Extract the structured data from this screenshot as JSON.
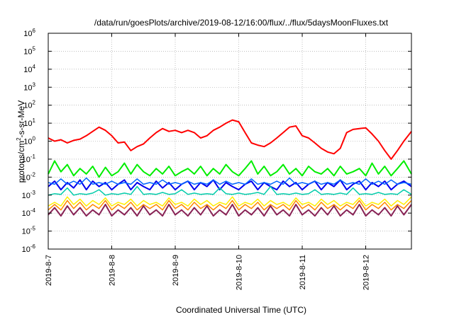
{
  "chart_data": {
    "type": "line",
    "title": "/data/run/goesPlots/archive/2019-08-12/16:00/flux/../flux/5daysMoonFluxes.txt",
    "xlabel": "Coordinated Universal Time (UTC)",
    "ylabel": {
      "base": "protons/cm",
      "sup": "2",
      "rest": "-s-sr-MeV"
    },
    "yscale": "log",
    "ylim": [
      1e-06,
      1000000.0
    ],
    "xlim": [
      0,
      5.72
    ],
    "grid": true,
    "legend": "none",
    "x_ticks": [
      {
        "x": 0,
        "label": "2019-8-7"
      },
      {
        "x": 1,
        "label": "2019-8-8"
      },
      {
        "x": 2,
        "label": "2019-8-9"
      },
      {
        "x": 3,
        "label": "2019-8-10"
      },
      {
        "x": 4,
        "label": "2019-8-11"
      },
      {
        "x": 5,
        "label": "2019-8-12"
      }
    ],
    "y_ticks": [
      {
        "exp": -6,
        "label": "10",
        "sup": "-6"
      },
      {
        "exp": -5,
        "label": "10",
        "sup": "-5"
      },
      {
        "exp": -4,
        "label": "10",
        "sup": "-4"
      },
      {
        "exp": -3,
        "label": "10",
        "sup": "-3"
      },
      {
        "exp": -2,
        "label": "10",
        "sup": "-2"
      },
      {
        "exp": -1,
        "label": "10",
        "sup": "-1"
      },
      {
        "exp": 0,
        "label": "10",
        "sup": "0"
      },
      {
        "exp": 1,
        "label": "10",
        "sup": "1"
      },
      {
        "exp": 2,
        "label": "10",
        "sup": "2"
      },
      {
        "exp": 3,
        "label": "10",
        "sup": "3"
      },
      {
        "exp": 4,
        "label": "10",
        "sup": "4"
      },
      {
        "exp": 5,
        "label": "10",
        "sup": "5"
      },
      {
        "exp": 6,
        "label": "10",
        "sup": "6"
      }
    ],
    "series": [
      {
        "color": "#ff0000",
        "width": 2,
        "x": [
          0,
          0.1,
          0.2,
          0.3,
          0.4,
          0.5,
          0.6,
          0.7,
          0.8,
          0.9,
          1.0,
          1.1,
          1.2,
          1.3,
          1.4,
          1.5,
          1.6,
          1.7,
          1.8,
          1.9,
          2.0,
          2.1,
          2.2,
          2.3,
          2.4,
          2.5,
          2.6,
          2.7,
          2.8,
          2.9,
          3.0,
          3.1,
          3.2,
          3.3,
          3.4,
          3.5,
          3.6,
          3.7,
          3.8,
          3.9,
          4.0,
          4.1,
          4.2,
          4.3,
          4.4,
          4.5,
          4.6,
          4.7,
          4.8,
          4.9,
          5.0,
          5.1,
          5.2,
          5.3,
          5.4,
          5.5,
          5.6,
          5.72
        ],
        "y": [
          1.5,
          1.0,
          1.2,
          0.8,
          1.1,
          1.3,
          2.0,
          3.5,
          6.0,
          4.0,
          2.0,
          0.8,
          0.9,
          0.3,
          0.5,
          0.7,
          1.5,
          3.0,
          5.0,
          3.5,
          4.0,
          3.0,
          4.0,
          3.0,
          1.5,
          2.0,
          4.0,
          6.0,
          10,
          15,
          12,
          3.0,
          0.8,
          0.6,
          0.5,
          0.8,
          1.5,
          3.0,
          6.0,
          7.0,
          2.0,
          1.5,
          0.8,
          0.4,
          0.25,
          0.2,
          0.4,
          3.0,
          4.5,
          5.0,
          5.5,
          2.5,
          1.0,
          0.3,
          0.1,
          0.3,
          1.0,
          3.5
        ]
      },
      {
        "color": "#00ee00",
        "width": 2,
        "x": [
          0,
          0.1,
          0.2,
          0.3,
          0.4,
          0.5,
          0.6,
          0.7,
          0.8,
          0.9,
          1.0,
          1.1,
          1.2,
          1.3,
          1.4,
          1.5,
          1.6,
          1.7,
          1.8,
          1.9,
          2.0,
          2.1,
          2.2,
          2.3,
          2.4,
          2.5,
          2.6,
          2.7,
          2.8,
          2.9,
          3.0,
          3.1,
          3.2,
          3.3,
          3.4,
          3.5,
          3.6,
          3.7,
          3.8,
          3.9,
          4.0,
          4.1,
          4.2,
          4.3,
          4.4,
          4.5,
          4.6,
          4.7,
          4.8,
          4.9,
          5.0,
          5.1,
          5.2,
          5.3,
          5.4,
          5.5,
          5.6,
          5.72
        ],
        "y": [
          0.015,
          0.08,
          0.02,
          0.05,
          0.012,
          0.03,
          0.015,
          0.04,
          0.01,
          0.035,
          0.012,
          0.02,
          0.06,
          0.015,
          0.05,
          0.02,
          0.012,
          0.03,
          0.015,
          0.04,
          0.012,
          0.02,
          0.03,
          0.015,
          0.04,
          0.012,
          0.03,
          0.015,
          0.05,
          0.02,
          0.012,
          0.03,
          0.08,
          0.015,
          0.04,
          0.012,
          0.02,
          0.05,
          0.015,
          0.03,
          0.012,
          0.04,
          0.02,
          0.015,
          0.03,
          0.012,
          0.04,
          0.015,
          0.02,
          0.03,
          0.012,
          0.06,
          0.015,
          0.04,
          0.012,
          0.03,
          0.08,
          0.015
        ]
      },
      {
        "color": "#0000ee",
        "width": 2,
        "x": [
          0,
          0.1,
          0.2,
          0.3,
          0.4,
          0.5,
          0.6,
          0.7,
          0.8,
          0.9,
          1.0,
          1.1,
          1.2,
          1.3,
          1.4,
          1.5,
          1.6,
          1.7,
          1.8,
          1.9,
          2.0,
          2.1,
          2.2,
          2.3,
          2.4,
          2.5,
          2.6,
          2.7,
          2.8,
          2.9,
          3.0,
          3.1,
          3.2,
          3.3,
          3.4,
          3.5,
          3.6,
          3.7,
          3.8,
          3.9,
          4.0,
          4.1,
          4.2,
          4.3,
          4.4,
          4.5,
          4.6,
          4.7,
          4.8,
          4.9,
          5.0,
          5.1,
          5.2,
          5.3,
          5.4,
          5.5,
          5.6,
          5.72
        ],
        "y": [
          0.003,
          0.006,
          0.002,
          0.005,
          0.0025,
          0.007,
          0.002,
          0.006,
          0.003,
          0.005,
          0.002,
          0.004,
          0.007,
          0.002,
          0.005,
          0.003,
          0.002,
          0.006,
          0.0025,
          0.005,
          0.002,
          0.004,
          0.006,
          0.002,
          0.005,
          0.003,
          0.007,
          0.002,
          0.005,
          0.003,
          0.002,
          0.004,
          0.006,
          0.002,
          0.005,
          0.003,
          0.002,
          0.006,
          0.003,
          0.005,
          0.002,
          0.004,
          0.006,
          0.002,
          0.005,
          0.003,
          0.007,
          0.002,
          0.004,
          0.006,
          0.002,
          0.005,
          0.003,
          0.006,
          0.002,
          0.004,
          0.006,
          0.003
        ]
      },
      {
        "color": "#0066ff",
        "width": 1.5,
        "x": [
          0,
          0.1,
          0.2,
          0.3,
          0.4,
          0.5,
          0.6,
          0.7,
          0.8,
          0.9,
          1.0,
          1.1,
          1.2,
          1.3,
          1.4,
          1.5,
          1.6,
          1.7,
          1.8,
          1.9,
          2.0,
          2.1,
          2.2,
          2.3,
          2.4,
          2.5,
          2.6,
          2.7,
          2.8,
          2.9,
          3.0,
          3.1,
          3.2,
          3.3,
          3.4,
          3.5,
          3.6,
          3.7,
          3.8,
          3.9,
          4.0,
          4.1,
          4.2,
          4.3,
          4.4,
          4.5,
          4.6,
          4.7,
          4.8,
          4.9,
          5.0,
          5.1,
          5.2,
          5.3,
          5.4,
          5.5,
          5.6,
          5.72
        ],
        "y": [
          0.005,
          0.004,
          0.008,
          0.004,
          0.006,
          0.004,
          0.009,
          0.004,
          0.005,
          0.004,
          0.006,
          0.004,
          0.005,
          0.004,
          0.008,
          0.004,
          0.005,
          0.004,
          0.007,
          0.004,
          0.005,
          0.004,
          0.006,
          0.004,
          0.005,
          0.004,
          0.007,
          0.004,
          0.006,
          0.004,
          0.005,
          0.004,
          0.008,
          0.004,
          0.005,
          0.004,
          0.006,
          0.004,
          0.009,
          0.004,
          0.005,
          0.004,
          0.006,
          0.004,
          0.005,
          0.004,
          0.007,
          0.004,
          0.005,
          0.004,
          0.008,
          0.004,
          0.006,
          0.004,
          0.007,
          0.004,
          0.005,
          0.004
        ]
      },
      {
        "color": "#00ccaa",
        "width": 1.5,
        "x": [
          0,
          0.1,
          0.2,
          0.3,
          0.4,
          0.5,
          0.6,
          0.7,
          0.8,
          0.9,
          1.0,
          1.1,
          1.2,
          1.3,
          1.4,
          1.5,
          1.6,
          1.7,
          1.8,
          1.9,
          2.0,
          2.1,
          2.2,
          2.3,
          2.4,
          2.5,
          2.6,
          2.7,
          2.8,
          2.9,
          3.0,
          3.1,
          3.2,
          3.3,
          3.4,
          3.5,
          3.6,
          3.7,
          3.8,
          3.9,
          4.0,
          4.1,
          4.2,
          4.3,
          4.4,
          4.5,
          4.6,
          4.7,
          4.8,
          4.9,
          5.0,
          5.1,
          5.2,
          5.3,
          5.4,
          5.5,
          5.6,
          5.72
        ],
        "y": [
          0.001,
          0.0012,
          0.0011,
          0.0025,
          0.001,
          0.0012,
          0.0011,
          0.0013,
          0.002,
          0.001,
          0.0012,
          0.0011,
          0.0013,
          0.0011,
          0.003,
          0.0011,
          0.0012,
          0.0011,
          0.0014,
          0.0011,
          0.0012,
          0.002,
          0.0011,
          0.0013,
          0.0011,
          0.0012,
          0.0011,
          0.0025,
          0.0012,
          0.0011,
          0.0013,
          0.0011,
          0.0012,
          0.0014,
          0.0011,
          0.003,
          0.0011,
          0.0012,
          0.0011,
          0.0013,
          0.0011,
          0.0012,
          0.002,
          0.0011,
          0.0012,
          0.0011,
          0.0013,
          0.0011,
          0.0025,
          0.0011,
          0.0012,
          0.0011,
          0.0014,
          0.0011,
          0.0012,
          0.0011,
          0.002,
          0.0011
        ]
      },
      {
        "color": "#ffee00",
        "width": 1.5,
        "x": [
          0,
          0.1,
          0.2,
          0.3,
          0.4,
          0.5,
          0.6,
          0.7,
          0.8,
          0.9,
          1.0,
          1.1,
          1.2,
          1.3,
          1.4,
          1.5,
          1.6,
          1.7,
          1.8,
          1.9,
          2.0,
          2.1,
          2.2,
          2.3,
          2.4,
          2.5,
          2.6,
          2.7,
          2.8,
          2.9,
          3.0,
          3.1,
          3.2,
          3.3,
          3.4,
          3.5,
          3.6,
          3.7,
          3.8,
          3.9,
          4.0,
          4.1,
          4.2,
          4.3,
          4.4,
          4.5,
          4.6,
          4.7,
          4.8,
          4.9,
          5.0,
          5.1,
          5.2,
          5.3,
          5.4,
          5.5,
          5.6,
          5.72
        ],
        "y": [
          0.00025,
          0.0004,
          0.00025,
          0.0008,
          0.0003,
          0.0006,
          0.00025,
          0.0005,
          0.0003,
          0.0007,
          0.00025,
          0.0004,
          0.0003,
          0.0006,
          0.00025,
          0.0005,
          0.0003,
          0.0004,
          0.00025,
          0.0007,
          0.0003,
          0.0004,
          0.00025,
          0.0006,
          0.0003,
          0.0005,
          0.00025,
          0.0004,
          0.0003,
          0.0008,
          0.00025,
          0.0004,
          0.0003,
          0.0006,
          0.00025,
          0.0005,
          0.0003,
          0.0004,
          0.00025,
          0.0007,
          0.0003,
          0.0004,
          0.00025,
          0.0006,
          0.0003,
          0.0005,
          0.00025,
          0.0004,
          0.0003,
          0.0007,
          0.00025,
          0.0004,
          0.0003,
          0.0006,
          0.00025,
          0.0005,
          0.0003,
          0.0008
        ]
      },
      {
        "color": "#ff8800",
        "width": 1.5,
        "x": [
          0,
          0.1,
          0.2,
          0.3,
          0.4,
          0.5,
          0.6,
          0.7,
          0.8,
          0.9,
          1.0,
          1.1,
          1.2,
          1.3,
          1.4,
          1.5,
          1.6,
          1.7,
          1.8,
          1.9,
          2.0,
          2.1,
          2.2,
          2.3,
          2.4,
          2.5,
          2.6,
          2.7,
          2.8,
          2.9,
          3.0,
          3.1,
          3.2,
          3.3,
          3.4,
          3.5,
          3.6,
          3.7,
          3.8,
          3.9,
          4.0,
          4.1,
          4.2,
          4.3,
          4.4,
          4.5,
          4.6,
          4.7,
          4.8,
          4.9,
          5.0,
          5.1,
          5.2,
          5.3,
          5.4,
          5.5,
          5.6,
          5.72
        ],
        "y": [
          0.00015,
          0.0003,
          0.00015,
          0.0005,
          0.00018,
          0.0004,
          0.00015,
          0.0003,
          0.00018,
          0.0005,
          0.00015,
          0.0003,
          0.00018,
          0.0004,
          0.00015,
          0.0003,
          0.00018,
          0.0003,
          0.00015,
          0.0005,
          0.00018,
          0.0003,
          0.00015,
          0.0004,
          0.00018,
          0.0003,
          0.00015,
          0.0003,
          0.00018,
          0.0005,
          0.00015,
          0.0003,
          0.00018,
          0.0004,
          0.00015,
          0.0003,
          0.00018,
          0.0003,
          0.00015,
          0.0005,
          0.00018,
          0.0003,
          0.00015,
          0.0004,
          0.00018,
          0.0003,
          0.00015,
          0.0003,
          0.00018,
          0.0005,
          0.00015,
          0.0003,
          0.00018,
          0.0004,
          0.00015,
          0.0003,
          0.00018,
          0.0005
        ]
      },
      {
        "color": "#882255",
        "width": 2,
        "x": [
          0,
          0.1,
          0.2,
          0.3,
          0.4,
          0.5,
          0.6,
          0.7,
          0.8,
          0.9,
          1.0,
          1.1,
          1.2,
          1.3,
          1.4,
          1.5,
          1.6,
          1.7,
          1.8,
          1.9,
          2.0,
          2.1,
          2.2,
          2.3,
          2.4,
          2.5,
          2.6,
          2.7,
          2.8,
          2.9,
          3.0,
          3.1,
          3.2,
          3.3,
          3.4,
          3.5,
          3.6,
          3.7,
          3.8,
          3.9,
          4.0,
          4.1,
          4.2,
          4.3,
          4.4,
          4.5,
          4.6,
          4.7,
          4.8,
          4.9,
          5.0,
          5.1,
          5.2,
          5.3,
          5.4,
          5.5,
          5.6,
          5.72
        ],
        "y": [
          8e-05,
          0.0002,
          7e-05,
          0.00025,
          8e-05,
          0.0002,
          7e-05,
          0.00015,
          8e-05,
          0.0003,
          7e-05,
          0.00015,
          8e-05,
          0.0002,
          7e-05,
          0.00025,
          8e-05,
          0.00015,
          7e-05,
          0.0003,
          8e-05,
          0.00015,
          7e-05,
          0.0002,
          8e-05,
          0.00025,
          7e-05,
          0.00015,
          8e-05,
          0.0003,
          7e-05,
          0.00015,
          8e-05,
          0.0002,
          7e-05,
          0.00025,
          8e-05,
          0.00015,
          7e-05,
          0.0003,
          8e-05,
          0.00015,
          7e-05,
          0.0002,
          8e-05,
          0.00025,
          7e-05,
          0.00015,
          8e-05,
          0.0003,
          7e-05,
          0.00015,
          8e-05,
          0.0002,
          7e-05,
          0.00025,
          8e-05,
          0.0003
        ]
      }
    ]
  }
}
